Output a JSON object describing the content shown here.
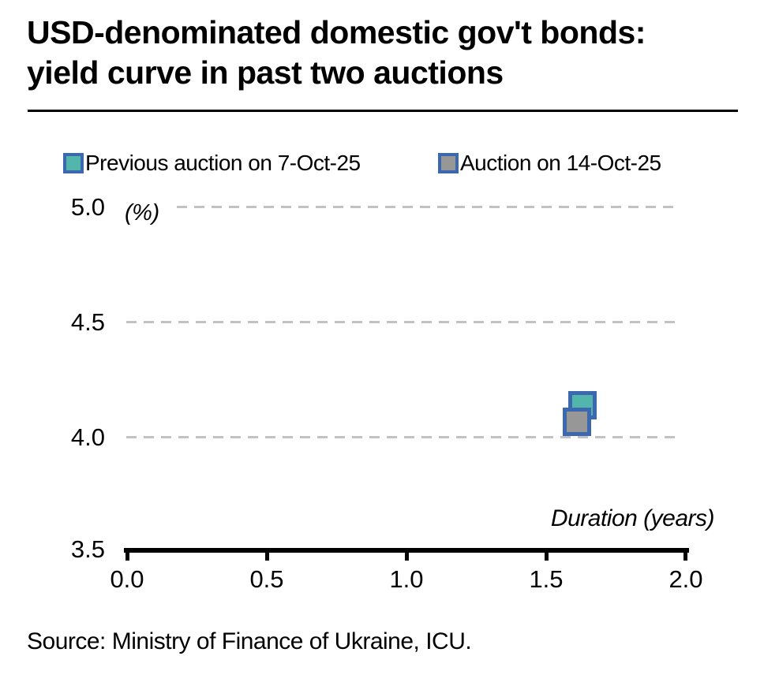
{
  "title": {
    "line1": "USD-denominated domestic gov't bonds:",
    "line2": "yield curve in past two auctions"
  },
  "legend": [
    {
      "label": "Previous auction on 7-Oct-25",
      "fill": "#52b6ad",
      "border": "#3c68b0"
    },
    {
      "label": "Auction on 14-Oct-25",
      "fill": "#979797",
      "border": "#3c68b0"
    }
  ],
  "axes": {
    "y_unit_label": "(%)",
    "x_axis_label": "Duration (years)",
    "y_tick_labels": [
      "5.0",
      "4.5",
      "4.0",
      "3.5"
    ],
    "x_tick_labels": [
      "0.0",
      "0.5",
      "1.0",
      "1.5",
      "2.0"
    ]
  },
  "source": "Source: Ministry of Finance of Ukraine, ICU.",
  "colors": {
    "grid": "#c2c2c2",
    "axis": "#000000",
    "marker_border": "#3c68b0",
    "series1_fill": "#52b6ad",
    "series2_fill": "#979797"
  },
  "chart_data": {
    "type": "scatter",
    "title": "USD-denominated domestic gov't bonds: yield curve in past two auctions",
    "xlabel": "Duration (years)",
    "ylabel": "(%)",
    "xlim": [
      0.0,
      2.0
    ],
    "ylim": [
      3.5,
      5.0
    ],
    "x_ticks": [
      0.0,
      0.5,
      1.0,
      1.5,
      2.0
    ],
    "y_ticks": [
      3.5,
      4.0,
      4.5,
      5.0
    ],
    "grid": "horizontal-dashed",
    "legend_position": "top",
    "series": [
      {
        "name": "Previous auction on 7-Oct-25",
        "marker": "square",
        "fill": "#52b6ad",
        "border": "#3c68b0",
        "points": [
          {
            "x": 1.63,
            "y": 4.14
          }
        ]
      },
      {
        "name": "Auction on 14-Oct-25",
        "marker": "square",
        "fill": "#979797",
        "border": "#3c68b0",
        "points": [
          {
            "x": 1.61,
            "y": 4.07
          }
        ]
      }
    ],
    "source": "Source: Ministry of Finance of Ukraine, ICU."
  }
}
